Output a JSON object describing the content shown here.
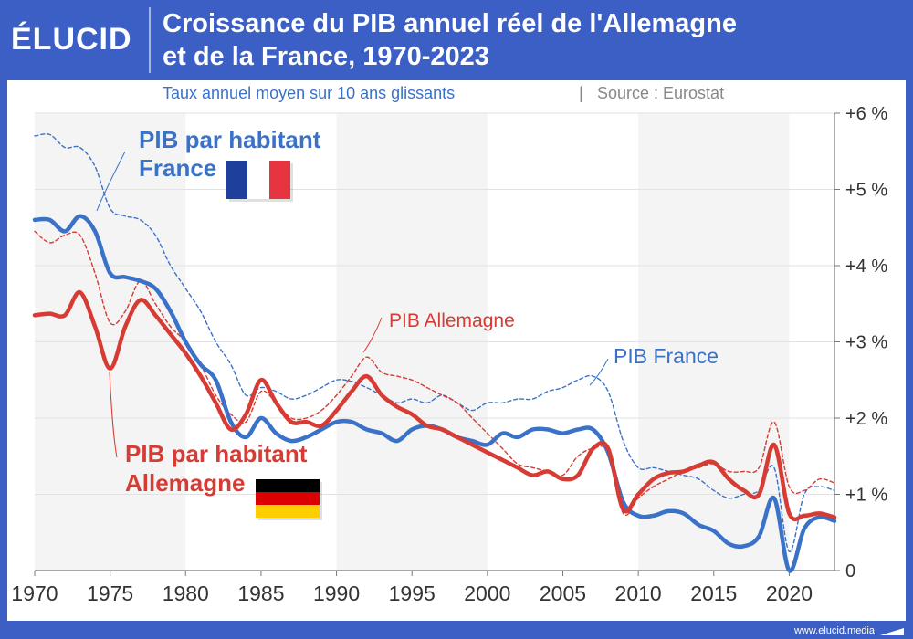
{
  "header": {
    "logo_text": "ÉLUCID",
    "title_line1": "Croissance du PIB annuel réel de l'Allemagne",
    "title_line2": "et de la France, 1970-2023"
  },
  "footer": {
    "url": "www.elucid.media"
  },
  "colors": {
    "brand": "#3b5fc4",
    "france": "#3a72c8",
    "germany": "#d63b34",
    "text": "#333333"
  },
  "chart_data": {
    "type": "line",
    "subtitle": "Taux annuel moyen sur 10 ans glissants",
    "source": "Source : Eurostat",
    "separator": "|",
    "xlim": [
      1970,
      2023
    ],
    "ylim": [
      0,
      6
    ],
    "x_ticks": [
      1970,
      1975,
      1980,
      1985,
      1990,
      1995,
      2000,
      2005,
      2010,
      2015,
      2020
    ],
    "y_ticks": [
      {
        "value": 0,
        "label": "0"
      },
      {
        "value": 1,
        "label": "+1 %"
      },
      {
        "value": 2,
        "label": "+2 %"
      },
      {
        "value": 3,
        "label": "+3 %"
      },
      {
        "value": 4,
        "label": "+4 %"
      },
      {
        "value": 5,
        "label": "+5 %"
      },
      {
        "value": 6,
        "label": "+6 %"
      }
    ],
    "shaded_bands": [
      [
        1970,
        1980
      ],
      [
        1990,
        2000
      ],
      [
        2010,
        2020
      ]
    ],
    "series": [
      {
        "name": "PIB France",
        "color": "#3a72c8",
        "style": "dashed",
        "points": [
          [
            1970,
            5.7
          ],
          [
            1971,
            5.72
          ],
          [
            1972,
            5.55
          ],
          [
            1973,
            5.55
          ],
          [
            1974,
            5.3
          ],
          [
            1975,
            4.75
          ],
          [
            1976,
            4.65
          ],
          [
            1977,
            4.6
          ],
          [
            1978,
            4.4
          ],
          [
            1979,
            4.0
          ],
          [
            1980,
            3.7
          ],
          [
            1981,
            3.4
          ],
          [
            1982,
            3.0
          ],
          [
            1983,
            2.7
          ],
          [
            1984,
            2.3
          ],
          [
            1985,
            2.4
          ],
          [
            1986,
            2.35
          ],
          [
            1987,
            2.25
          ],
          [
            1988,
            2.3
          ],
          [
            1989,
            2.4
          ],
          [
            1990,
            2.5
          ],
          [
            1991,
            2.48
          ],
          [
            1992,
            2.4
          ],
          [
            1993,
            2.3
          ],
          [
            1994,
            2.2
          ],
          [
            1995,
            2.25
          ],
          [
            1996,
            2.2
          ],
          [
            1997,
            2.3
          ],
          [
            1998,
            2.2
          ],
          [
            1999,
            2.1
          ],
          [
            2000,
            2.2
          ],
          [
            2001,
            2.2
          ],
          [
            2002,
            2.25
          ],
          [
            2003,
            2.25
          ],
          [
            2004,
            2.35
          ],
          [
            2005,
            2.4
          ],
          [
            2006,
            2.5
          ],
          [
            2007,
            2.55
          ],
          [
            2008,
            2.35
          ],
          [
            2009,
            1.7
          ],
          [
            2010,
            1.35
          ],
          [
            2011,
            1.35
          ],
          [
            2012,
            1.3
          ],
          [
            2013,
            1.25
          ],
          [
            2014,
            1.2
          ],
          [
            2015,
            1.05
          ],
          [
            2016,
            0.95
          ],
          [
            2017,
            1.0
          ],
          [
            2018,
            1.05
          ],
          [
            2019,
            1.35
          ],
          [
            2020,
            0.25
          ],
          [
            2021,
            1.0
          ],
          [
            2022,
            1.1
          ],
          [
            2023,
            1.05
          ]
        ]
      },
      {
        "name": "PIB Allemagne",
        "color": "#d63b34",
        "style": "dashed",
        "points": [
          [
            1970,
            4.45
          ],
          [
            1971,
            4.3
          ],
          [
            1972,
            4.4
          ],
          [
            1973,
            4.4
          ],
          [
            1974,
            3.9
          ],
          [
            1975,
            3.25
          ],
          [
            1976,
            3.4
          ],
          [
            1977,
            3.8
          ],
          [
            1978,
            3.5
          ],
          [
            1979,
            3.2
          ],
          [
            1980,
            3.0
          ],
          [
            1981,
            2.7
          ],
          [
            1982,
            2.3
          ],
          [
            1983,
            2.05
          ],
          [
            1984,
            1.95
          ],
          [
            1985,
            2.35
          ],
          [
            1986,
            2.2
          ],
          [
            1987,
            2.0
          ],
          [
            1988,
            2.0
          ],
          [
            1989,
            2.1
          ],
          [
            1990,
            2.3
          ],
          [
            1991,
            2.55
          ],
          [
            1992,
            2.8
          ],
          [
            1993,
            2.6
          ],
          [
            1994,
            2.55
          ],
          [
            1995,
            2.5
          ],
          [
            1996,
            2.4
          ],
          [
            1997,
            2.3
          ],
          [
            1998,
            2.2
          ],
          [
            1999,
            2.0
          ],
          [
            2000,
            1.8
          ],
          [
            2001,
            1.6
          ],
          [
            2002,
            1.4
          ],
          [
            2003,
            1.35
          ],
          [
            2004,
            1.3
          ],
          [
            2005,
            1.25
          ],
          [
            2006,
            1.5
          ],
          [
            2007,
            1.6
          ],
          [
            2008,
            1.55
          ],
          [
            2009,
            0.75
          ],
          [
            2010,
            0.95
          ],
          [
            2011,
            1.1
          ],
          [
            2012,
            1.2
          ],
          [
            2013,
            1.3
          ],
          [
            2014,
            1.35
          ],
          [
            2015,
            1.4
          ],
          [
            2016,
            1.3
          ],
          [
            2017,
            1.3
          ],
          [
            2018,
            1.35
          ],
          [
            2019,
            1.95
          ],
          [
            2020,
            1.1
          ],
          [
            2021,
            1.05
          ],
          [
            2022,
            1.2
          ],
          [
            2023,
            1.15
          ]
        ]
      },
      {
        "name": "PIB par habitant France",
        "color": "#3a72c8",
        "style": "solid",
        "points": [
          [
            1970,
            4.6
          ],
          [
            1971,
            4.6
          ],
          [
            1972,
            4.45
          ],
          [
            1973,
            4.65
          ],
          [
            1974,
            4.45
          ],
          [
            1975,
            3.9
          ],
          [
            1976,
            3.85
          ],
          [
            1977,
            3.8
          ],
          [
            1978,
            3.7
          ],
          [
            1979,
            3.4
          ],
          [
            1980,
            3.0
          ],
          [
            1981,
            2.7
          ],
          [
            1982,
            2.5
          ],
          [
            1983,
            1.95
          ],
          [
            1984,
            1.75
          ],
          [
            1985,
            2.0
          ],
          [
            1986,
            1.8
          ],
          [
            1987,
            1.7
          ],
          [
            1988,
            1.75
          ],
          [
            1989,
            1.85
          ],
          [
            1990,
            1.95
          ],
          [
            1991,
            1.95
          ],
          [
            1992,
            1.85
          ],
          [
            1993,
            1.8
          ],
          [
            1994,
            1.7
          ],
          [
            1995,
            1.85
          ],
          [
            1996,
            1.9
          ],
          [
            1997,
            1.85
          ],
          [
            1998,
            1.75
          ],
          [
            1999,
            1.7
          ],
          [
            2000,
            1.65
          ],
          [
            2001,
            1.8
          ],
          [
            2002,
            1.75
          ],
          [
            2003,
            1.85
          ],
          [
            2004,
            1.85
          ],
          [
            2005,
            1.8
          ],
          [
            2006,
            1.85
          ],
          [
            2007,
            1.85
          ],
          [
            2008,
            1.55
          ],
          [
            2009,
            0.9
          ],
          [
            2010,
            0.72
          ],
          [
            2011,
            0.72
          ],
          [
            2012,
            0.78
          ],
          [
            2013,
            0.75
          ],
          [
            2014,
            0.6
          ],
          [
            2015,
            0.52
          ],
          [
            2016,
            0.35
          ],
          [
            2017,
            0.32
          ],
          [
            2018,
            0.45
          ],
          [
            2019,
            0.95
          ],
          [
            2020,
            0.0
          ],
          [
            2021,
            0.55
          ],
          [
            2022,
            0.7
          ],
          [
            2023,
            0.65
          ]
        ]
      },
      {
        "name": "PIB par habitant Allemagne",
        "color": "#d63b34",
        "style": "solid",
        "points": [
          [
            1970,
            3.35
          ],
          [
            1971,
            3.37
          ],
          [
            1972,
            3.35
          ],
          [
            1973,
            3.65
          ],
          [
            1974,
            3.2
          ],
          [
            1975,
            2.65
          ],
          [
            1976,
            3.2
          ],
          [
            1977,
            3.55
          ],
          [
            1978,
            3.35
          ],
          [
            1979,
            3.1
          ],
          [
            1980,
            2.85
          ],
          [
            1981,
            2.55
          ],
          [
            1982,
            2.2
          ],
          [
            1983,
            1.85
          ],
          [
            1984,
            2.05
          ],
          [
            1985,
            2.5
          ],
          [
            1986,
            2.2
          ],
          [
            1987,
            1.95
          ],
          [
            1988,
            1.95
          ],
          [
            1989,
            1.9
          ],
          [
            1990,
            2.1
          ],
          [
            1991,
            2.35
          ],
          [
            1992,
            2.55
          ],
          [
            1993,
            2.3
          ],
          [
            1994,
            2.15
          ],
          [
            1995,
            2.05
          ],
          [
            1996,
            1.9
          ],
          [
            1997,
            1.85
          ],
          [
            1998,
            1.75
          ],
          [
            1999,
            1.65
          ],
          [
            2000,
            1.55
          ],
          [
            2001,
            1.45
          ],
          [
            2002,
            1.35
          ],
          [
            2003,
            1.25
          ],
          [
            2004,
            1.3
          ],
          [
            2005,
            1.2
          ],
          [
            2006,
            1.25
          ],
          [
            2007,
            1.6
          ],
          [
            2008,
            1.6
          ],
          [
            2009,
            0.8
          ],
          [
            2010,
            1.0
          ],
          [
            2011,
            1.2
          ],
          [
            2012,
            1.28
          ],
          [
            2013,
            1.3
          ],
          [
            2014,
            1.38
          ],
          [
            2015,
            1.42
          ],
          [
            2016,
            1.2
          ],
          [
            2017,
            1.05
          ],
          [
            2018,
            1.0
          ],
          [
            2019,
            1.65
          ],
          [
            2020,
            0.75
          ],
          [
            2021,
            0.72
          ],
          [
            2022,
            0.75
          ],
          [
            2023,
            0.7
          ]
        ]
      }
    ],
    "annotations": {
      "fr_pc_line1": "PIB par habitant",
      "fr_pc_line2": "France",
      "de_pc_line1": "PIB par habitant",
      "de_pc_line2": "Allemagne",
      "de_total": "PIB Allemagne",
      "fr_total": "PIB France"
    },
    "flags": {
      "france": "flag-france",
      "germany": "flag-germany"
    }
  }
}
